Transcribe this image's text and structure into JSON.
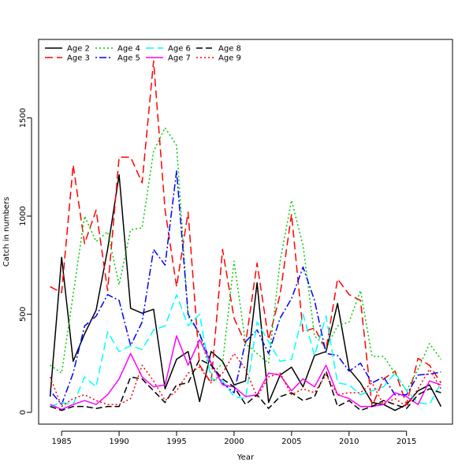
{
  "chart_data": {
    "type": "line",
    "title": "",
    "xlabel": "Year",
    "ylabel": "Catch in numbers",
    "xlim": [
      1983,
      2019
    ],
    "ylim": [
      -60,
      1900
    ],
    "xticks": [
      1985,
      1990,
      1995,
      2000,
      2005,
      2010,
      2015
    ],
    "yticks": [
      0,
      500,
      1000,
      1500
    ],
    "grid": false,
    "legend_position": "top-left",
    "x": [
      1984,
      1985,
      1986,
      1987,
      1988,
      1989,
      1990,
      1991,
      1992,
      1993,
      1994,
      1995,
      1996,
      1997,
      1998,
      1999,
      2000,
      2001,
      2002,
      2003,
      2004,
      2005,
      2006,
      2007,
      2008,
      2009,
      2010,
      2011,
      2012,
      2013,
      2014,
      2015,
      2016,
      2017,
      2018
    ],
    "series": [
      {
        "name": "Age 2",
        "color": "#000000",
        "dash": "solid",
        "values": [
          80,
          790,
          260,
          400,
          520,
          830,
          1210,
          530,
          505,
          525,
          120,
          270,
          310,
          55,
          310,
          260,
          140,
          160,
          660,
          50,
          190,
          230,
          130,
          290,
          310,
          555,
          220,
          150,
          50,
          40,
          10,
          40,
          110,
          140,
          30
        ]
      },
      {
        "name": "Age 3",
        "color": "#ff0000",
        "dash": "longdash",
        "values": [
          640,
          610,
          1260,
          860,
          1030,
          620,
          1300,
          1300,
          1170,
          1790,
          1030,
          640,
          1020,
          240,
          150,
          830,
          480,
          350,
          760,
          370,
          600,
          1010,
          410,
          430,
          320,
          680,
          600,
          570,
          30,
          170,
          210,
          40,
          275,
          240,
          150
        ]
      },
      {
        "name": "Age 4",
        "color": "#00cc00",
        "dash": "dotted",
        "values": [
          240,
          200,
          600,
          1000,
          870,
          920,
          650,
          930,
          940,
          1330,
          1450,
          1360,
          490,
          400,
          190,
          250,
          770,
          350,
          300,
          250,
          770,
          1080,
          850,
          390,
          330,
          440,
          460,
          620,
          285,
          285,
          200,
          110,
          220,
          350,
          270
        ]
      },
      {
        "name": "Age 5",
        "color": "#0000ff",
        "dash": "dotdash",
        "values": [
          110,
          40,
          200,
          440,
          490,
          600,
          570,
          340,
          460,
          830,
          750,
          1230,
          500,
          400,
          250,
          150,
          100,
          360,
          420,
          300,
          480,
          580,
          740,
          570,
          300,
          290,
          210,
          250,
          150,
          180,
          90,
          90,
          190,
          195,
          205
        ]
      },
      {
        "name": "Age 6",
        "color": "#00ffff",
        "dash": "longdash",
        "values": [
          30,
          50,
          40,
          180,
          130,
          410,
          310,
          340,
          320,
          420,
          440,
          600,
          440,
          500,
          170,
          160,
          80,
          70,
          460,
          360,
          260,
          270,
          500,
          290,
          490,
          150,
          140,
          90,
          110,
          130,
          200,
          110,
          50,
          40,
          150
        ]
      },
      {
        "name": "Age 7",
        "color": "#ff00ff",
        "dash": "solid",
        "values": [
          40,
          15,
          40,
          60,
          40,
          90,
          170,
          300,
          180,
          130,
          140,
          390,
          240,
          370,
          250,
          140,
          130,
          80,
          90,
          200,
          190,
          110,
          170,
          130,
          240,
          90,
          70,
          30,
          30,
          40,
          100,
          80,
          40,
          160,
          140
        ]
      },
      {
        "name": "Age 8",
        "color": "#000000",
        "dash": "dashed",
        "values": [
          30,
          10,
          30,
          30,
          20,
          30,
          30,
          180,
          170,
          110,
          50,
          140,
          150,
          270,
          240,
          170,
          130,
          40,
          90,
          20,
          80,
          100,
          60,
          80,
          210,
          30,
          60,
          10,
          30,
          60,
          40,
          20,
          90,
          120,
          100
        ]
      },
      {
        "name": "Age 9",
        "color": "#ff0000",
        "dash": "dotted",
        "values": [
          180,
          30,
          70,
          90,
          60,
          40,
          40,
          70,
          240,
          160,
          60,
          110,
          200,
          230,
          150,
          200,
          300,
          220,
          80,
          180,
          200,
          90,
          120,
          100,
          190,
          90,
          100,
          100,
          150,
          40,
          70,
          30,
          120,
          220,
          120
        ]
      }
    ]
  }
}
